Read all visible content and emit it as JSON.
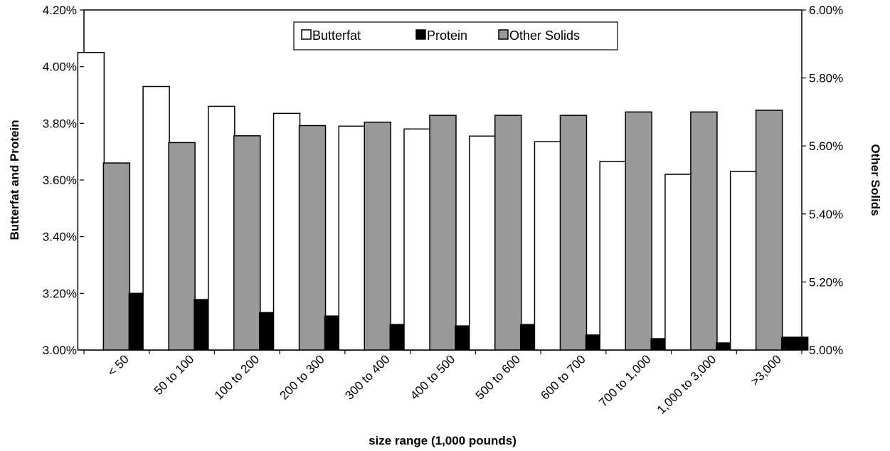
{
  "chart_data": {
    "type": "bar",
    "xlabel": "size range (1,000 pounds)",
    "ylabel_left": "Butterfat and Protein",
    "ylabel_right": "Other Solids",
    "categories": [
      "< 50",
      "50 to 100",
      "100 to 200",
      "200 to 300",
      "300 to 400",
      "400 to 500",
      "500 to 600",
      "600 to 700",
      "700 to 1,000",
      "1,000 to 3,000",
      ">3,000"
    ],
    "left_axis": {
      "ylim": [
        0.03,
        0.042
      ],
      "ticks": [
        "3.00%",
        "3.20%",
        "3.40%",
        "3.60%",
        "3.80%",
        "4.00%",
        "4.20%"
      ]
    },
    "right_axis": {
      "ylim": [
        0.05,
        0.06
      ],
      "ticks": [
        "5.00%",
        "5.20%",
        "5.40%",
        "5.60%",
        "5.80%",
        "6.00%"
      ]
    },
    "series": [
      {
        "name": "Butterfat",
        "axis": "left",
        "color": "#ffffff",
        "values": [
          0.0405,
          0.0393,
          0.0386,
          0.03835,
          0.0379,
          0.0378,
          0.03755,
          0.03735,
          0.03665,
          0.0362,
          0.0363
        ]
      },
      {
        "name": "Protein",
        "axis": "left",
        "color": "#000000",
        "values": [
          0.032,
          0.03178,
          0.03132,
          0.0312,
          0.0309,
          0.03085,
          0.0309,
          0.03053,
          0.0304,
          0.03025,
          0.03045
        ]
      },
      {
        "name": "Other Solids",
        "axis": "right",
        "color": "#999999",
        "values": [
          0.0555,
          0.0561,
          0.0563,
          0.0566,
          0.0567,
          0.0569,
          0.0569,
          0.0569,
          0.057,
          0.057,
          0.05705
        ]
      }
    ],
    "legend_position": "top-center",
    "grid": false
  }
}
